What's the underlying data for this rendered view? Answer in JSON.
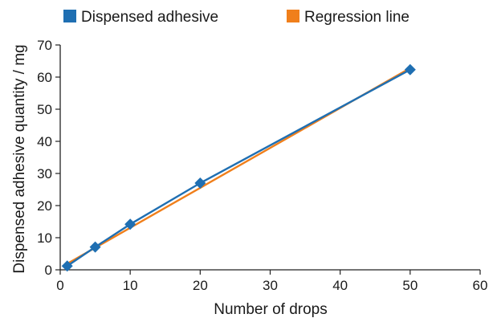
{
  "chart_data": {
    "type": "line",
    "xlabel": "Number of drops",
    "ylabel": "Dispensed adhesive quantity / mg",
    "xlim": [
      0,
      60
    ],
    "ylim": [
      0,
      70
    ],
    "xticks": [
      "0",
      "10",
      "20",
      "30",
      "40",
      "50",
      "60"
    ],
    "yticks": [
      "0",
      "10",
      "20",
      "30",
      "40",
      "50",
      "60",
      "70"
    ],
    "grid": false,
    "legend_position": "top",
    "series": [
      {
        "name": "Dispensed adhesive",
        "color": "#1f6fb2",
        "marker": "diamond",
        "x": [
          1,
          5,
          10,
          20,
          50
        ],
        "y": [
          1.2,
          7.1,
          14.2,
          27.0,
          62.3
        ]
      },
      {
        "name": "Regression line",
        "color": "#f07f1b",
        "marker": "none",
        "x": [
          1,
          50
        ],
        "y": [
          1.9,
          62.8
        ]
      }
    ]
  }
}
